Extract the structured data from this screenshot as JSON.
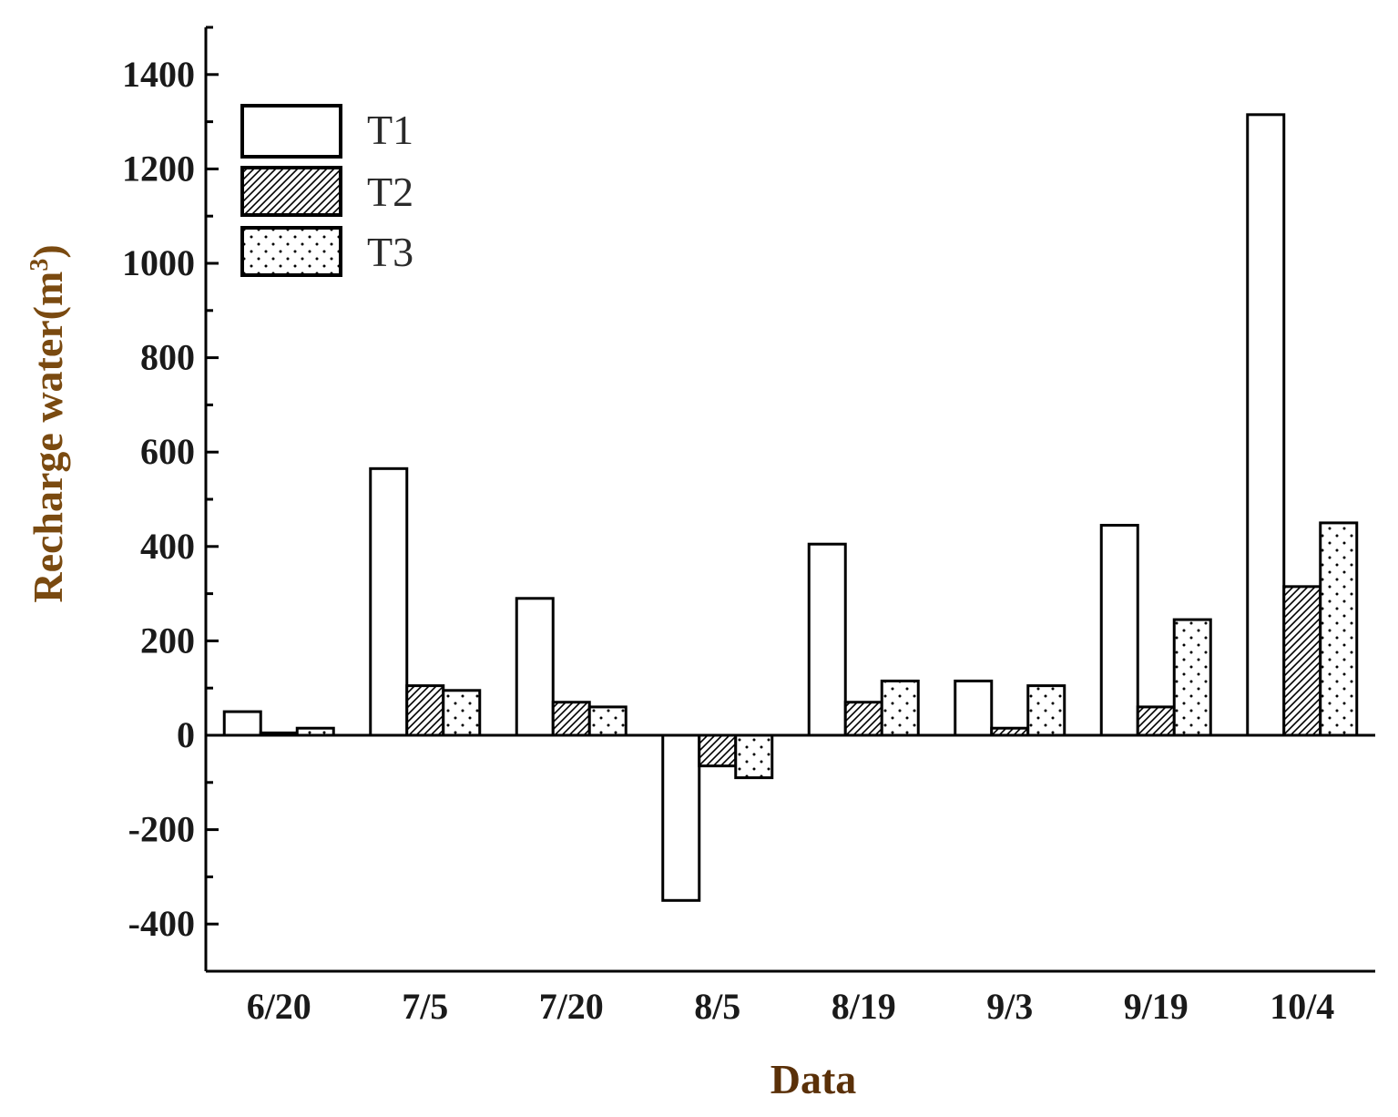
{
  "chart_data": {
    "type": "bar",
    "title": "",
    "xlabel": "Data",
    "ylabel_main": "Recharge water(m",
    "ylabel_sup": "3",
    "ylabel_close": ")",
    "ylim": [
      -500,
      1500
    ],
    "yticks": [
      -400,
      -200,
      0,
      200,
      400,
      600,
      800,
      1000,
      1200,
      1400
    ],
    "categories": [
      "6/20",
      "7/5",
      "7/20",
      "8/5",
      "8/19",
      "9/3",
      "9/19",
      "10/4"
    ],
    "series": [
      {
        "name": "T1",
        "pattern": "blank",
        "values": [
          50,
          565,
          290,
          -350,
          405,
          115,
          445,
          1315
        ]
      },
      {
        "name": "T2",
        "pattern": "hatch",
        "values": [
          5,
          105,
          70,
          -65,
          70,
          15,
          60,
          315
        ]
      },
      {
        "name": "T3",
        "pattern": "dots",
        "values": [
          15,
          95,
          60,
          -90,
          115,
          105,
          245,
          450
        ]
      }
    ],
    "legend_position": "top-left",
    "grid": false,
    "colors": {
      "axis": "#000000",
      "ylabel": "#7a4a10",
      "xlabel": "#5a3008",
      "bar_fill": "#ffffff"
    }
  }
}
